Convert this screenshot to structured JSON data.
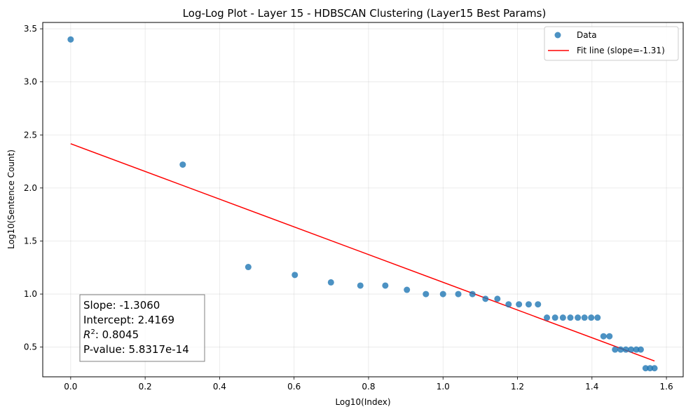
{
  "chart_data": {
    "type": "scatter",
    "title": "Log-Log Plot - Layer 15 - HDBSCAN Clustering (Layer15 Best Params)",
    "xlabel": "Log10(Index)",
    "ylabel": "Log10(Sentence Count)",
    "xlim": [
      -0.075,
      1.645
    ],
    "ylim": [
      0.22,
      3.56
    ],
    "x_ticks": [
      0.0,
      0.2,
      0.4,
      0.6,
      0.8,
      1.0,
      1.2,
      1.4,
      1.6
    ],
    "x_tick_labels": [
      "0.0",
      "0.2",
      "0.4",
      "0.6",
      "0.8",
      "1.0",
      "1.2",
      "1.4",
      "1.6"
    ],
    "y_ticks": [
      0.5,
      1.0,
      1.5,
      2.0,
      2.5,
      3.0,
      3.5
    ],
    "y_tick_labels": [
      "0.5",
      "1.0",
      "1.5",
      "2.0",
      "2.5",
      "3.0",
      "3.5"
    ],
    "grid": true,
    "legend_position": "top-right",
    "series": [
      {
        "name": "Data",
        "kind": "scatter",
        "color": "#1f77b4",
        "points": [
          [
            0.0,
            3.4
          ],
          [
            0.301,
            2.22
          ],
          [
            0.477,
            1.255
          ],
          [
            0.602,
            1.18
          ],
          [
            0.699,
            1.11
          ],
          [
            0.778,
            1.08
          ],
          [
            0.845,
            1.08
          ],
          [
            0.903,
            1.04
          ],
          [
            0.954,
            1.0
          ],
          [
            1.0,
            1.0
          ],
          [
            1.041,
            1.0
          ],
          [
            1.079,
            1.0
          ],
          [
            1.114,
            0.955
          ],
          [
            1.146,
            0.955
          ],
          [
            1.176,
            0.903
          ],
          [
            1.204,
            0.903
          ],
          [
            1.23,
            0.903
          ],
          [
            1.255,
            0.903
          ],
          [
            1.279,
            0.778
          ],
          [
            1.301,
            0.778
          ],
          [
            1.322,
            0.778
          ],
          [
            1.342,
            0.778
          ],
          [
            1.362,
            0.778
          ],
          [
            1.38,
            0.778
          ],
          [
            1.398,
            0.778
          ],
          [
            1.415,
            0.778
          ],
          [
            1.431,
            0.602
          ],
          [
            1.447,
            0.602
          ],
          [
            1.462,
            0.477
          ],
          [
            1.477,
            0.477
          ],
          [
            1.491,
            0.477
          ],
          [
            1.505,
            0.477
          ],
          [
            1.519,
            0.477
          ],
          [
            1.531,
            0.477
          ],
          [
            1.544,
            0.301
          ],
          [
            1.556,
            0.301
          ],
          [
            1.568,
            0.301
          ]
        ]
      },
      {
        "name": "Fit line (slope=-1.31)",
        "kind": "line",
        "color": "#ff0000",
        "slope": -1.306,
        "intercept": 2.4169,
        "x_range": [
          0.0,
          1.568
        ]
      }
    ],
    "stats_box": [
      {
        "label": "Slope: ",
        "value": "-1.3060"
      },
      {
        "label": "Intercept: ",
        "value": "2.4169"
      },
      {
        "label": "R2: ",
        "value": "0.8045"
      },
      {
        "label": "P-value: ",
        "value": "5.8317e-14"
      }
    ]
  }
}
